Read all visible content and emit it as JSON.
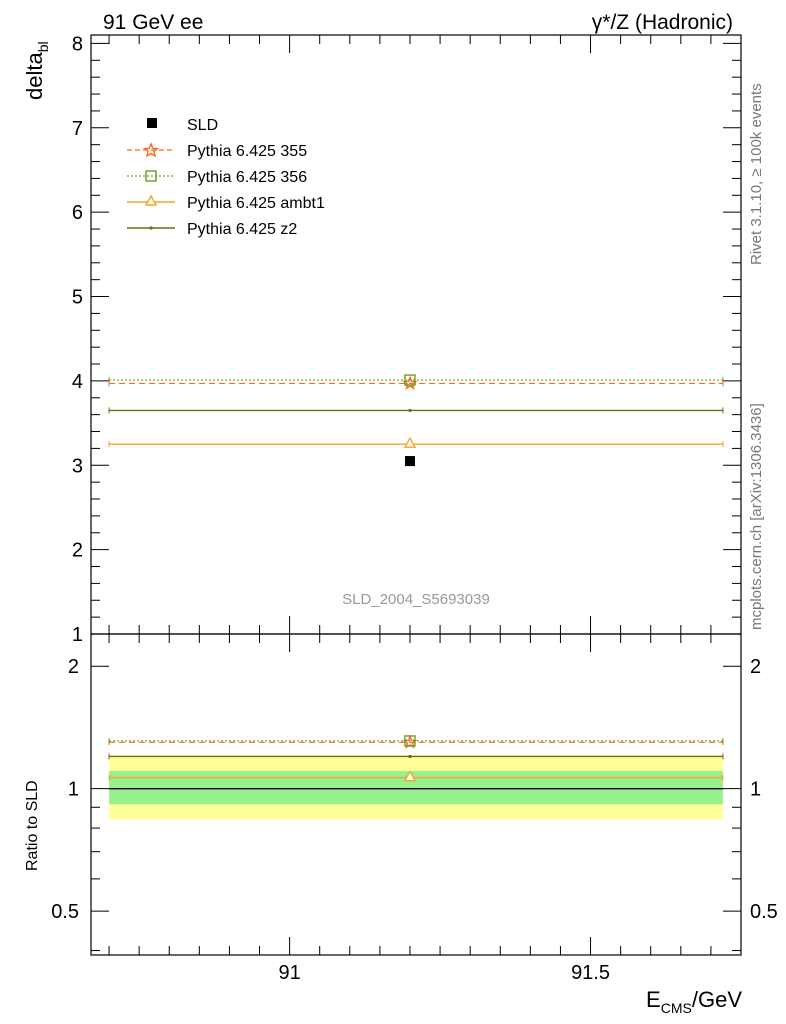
{
  "header": {
    "left": "91 GeV ee",
    "right": "γ*/Z (Hadronic)"
  },
  "side_labels": {
    "rivet": "Rivet 3.1.10, ≥ 100k events",
    "mcplots": "mcplots.cern.ch [arXiv:1306.3436]"
  },
  "analysis_id": "SLD_2004_S5693039",
  "colors": {
    "sld": "#000000",
    "p355": "#ff6a1a",
    "p356": "#6f9a1f",
    "ambt1": "#f5a623",
    "z2": "#6b6b1a",
    "band_inner": "#99f08f",
    "band_outer": "#ffff99"
  },
  "chart_data": [
    {
      "type": "scatter",
      "ylabel_main": "delta",
      "ylabel_sub": "bl",
      "xlim": [
        90.67,
        91.75
      ],
      "ylim": [
        1,
        8.1
      ],
      "yticks": [
        1,
        2,
        3,
        4,
        5,
        6,
        7,
        8
      ],
      "legend_placement": "top-left",
      "series": [
        {
          "name": "SLD",
          "x": [
            91.2
          ],
          "y": [
            3.05
          ],
          "xerr": [
            0.0
          ],
          "yerr": [
            0.0
          ]
        },
        {
          "name": "Pythia 6.425 355",
          "x": [
            91.2
          ],
          "y": [
            3.97
          ],
          "xrange": [
            90.7,
            91.72
          ]
        },
        {
          "name": "Pythia 6.425 356",
          "x": [
            91.2
          ],
          "y": [
            4.01
          ],
          "xrange": [
            90.7,
            91.72
          ]
        },
        {
          "name": "Pythia 6.425 ambt1",
          "x": [
            91.2
          ],
          "y": [
            3.25
          ],
          "xrange": [
            90.7,
            91.72
          ]
        },
        {
          "name": "Pythia 6.425 z2",
          "x": [
            91.2
          ],
          "y": [
            3.65
          ],
          "xrange": [
            90.7,
            91.72
          ]
        }
      ]
    },
    {
      "type": "scatter",
      "ylabel": "Ratio to SLD",
      "xlabel_main": "E",
      "xlabel_sub": "CMS",
      "xlabel_suffix": "/GeV",
      "xlim": [
        90.67,
        91.75
      ],
      "ylim": [
        0.39,
        2.4
      ],
      "log_y": true,
      "yticks": [
        0.5,
        1,
        2
      ],
      "ytick_labels": [
        "0.5",
        "1",
        "2"
      ],
      "xticks": [
        91,
        91.5
      ],
      "xtick_labels": [
        "91",
        "91.5"
      ],
      "bands": {
        "inner": [
          0.915,
          1.105
        ],
        "outer": [
          0.84,
          1.21
        ]
      },
      "series": [
        {
          "name": "Pythia 6.425 355",
          "x": [
            91.2
          ],
          "y": [
            1.3
          ]
        },
        {
          "name": "Pythia 6.425 356",
          "x": [
            91.2
          ],
          "y": [
            1.31
          ]
        },
        {
          "name": "Pythia 6.425 ambt1",
          "x": [
            91.2
          ],
          "y": [
            1.065
          ]
        },
        {
          "name": "Pythia 6.425 z2",
          "x": [
            91.2
          ],
          "y": [
            1.2
          ]
        }
      ]
    }
  ]
}
